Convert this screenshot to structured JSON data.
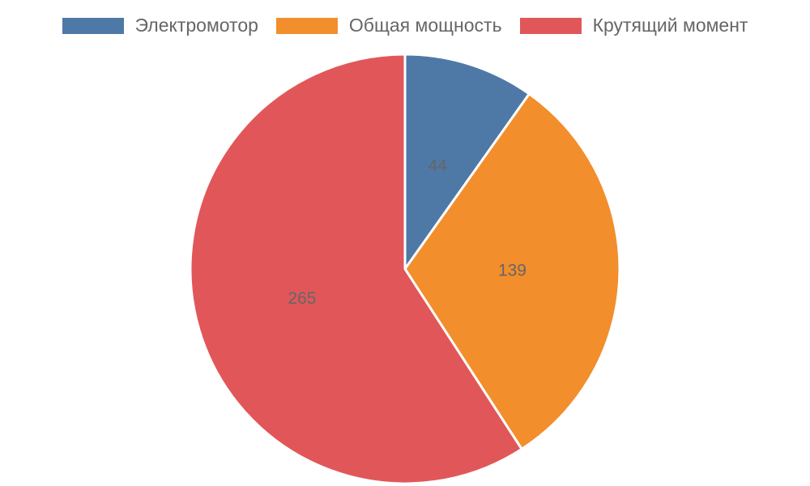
{
  "chart_data": {
    "type": "pie",
    "categories": [
      "Электромотор",
      "Общая мощность",
      "Крутящий момент"
    ],
    "values": [
      44,
      139,
      265
    ],
    "colors": [
      "#4e79a7",
      "#f28e2c",
      "#e15759"
    ],
    "legend": "top"
  }
}
